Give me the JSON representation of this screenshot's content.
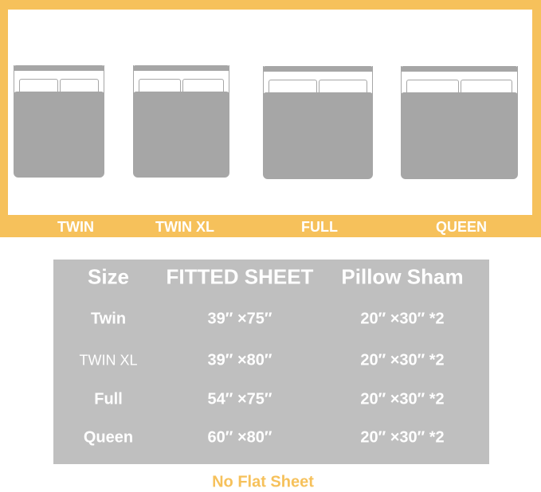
{
  "colors": {
    "accent": "#f6c15b",
    "table_bg": "#bfbfbf",
    "bed": "#a6a6a6"
  },
  "beds": [
    {
      "label": "TWIN"
    },
    {
      "label": "TWIN XL"
    },
    {
      "label": "FULL"
    },
    {
      "label": "QUEEN"
    }
  ],
  "table": {
    "headers": [
      "Size",
      "FITTED SHEET",
      "Pillow Sham"
    ],
    "rows": [
      [
        "Twin",
        "39″ ×75″",
        "20″ ×30″ *2"
      ],
      [
        "TWIN XL",
        "39″ ×80″",
        "20″ ×30″ *2"
      ],
      [
        "Full",
        "54″ ×75″",
        "20″ ×30″ *2"
      ],
      [
        "Queen",
        "60″ ×80″",
        "20″ ×30″ *2"
      ]
    ]
  },
  "note": "No Flat Sheet"
}
